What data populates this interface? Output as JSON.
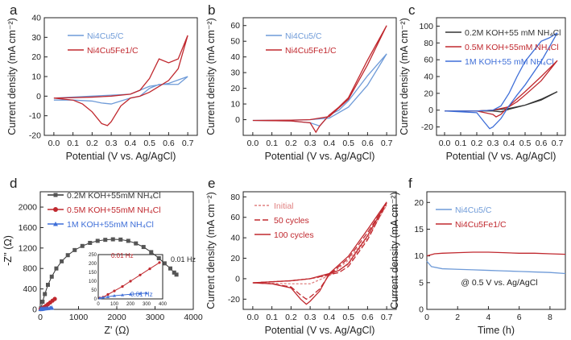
{
  "colors": {
    "blue": "#6f9bd8",
    "red": "#c0282e",
    "black": "#333333",
    "bright_blue": "#3f6fd8",
    "lightred": "#e08080"
  },
  "chart_data": [
    {
      "panel": "a",
      "type": "line",
      "xlabel": "Potential (V vs. Ag/AgCl)",
      "ylabel": "Current density (mA cm⁻²)",
      "xlim": [
        -0.05,
        0.75
      ],
      "ylim": [
        -20,
        40
      ],
      "xticks": [
        "0.0",
        "0.1",
        "0.2",
        "0.3",
        "0.4",
        "0.5",
        "0.6",
        "0.7"
      ],
      "yticks": [
        "-20",
        "-10",
        "0",
        "10",
        "20",
        "30",
        "40"
      ],
      "legend": [
        "Ni4Cu5/C",
        "Ni4Cu5Fe1/C"
      ],
      "series": [
        {
          "name": "Ni4Cu5/C",
          "color": "blue",
          "x": [
            0.0,
            0.1,
            0.2,
            0.3,
            0.4,
            0.5,
            0.6,
            0.7,
            0.65,
            0.6,
            0.55,
            0.5,
            0.45,
            0.4,
            0.35,
            0.3,
            0.25,
            0.2,
            0.1,
            0.0
          ],
          "y": [
            -1,
            -0.5,
            0,
            0.5,
            1,
            5,
            6.5,
            10,
            6,
            6,
            6,
            4,
            0,
            -1,
            -2.5,
            -4,
            -3.5,
            -2.5,
            -2,
            -2
          ]
        },
        {
          "name": "Ni4Cu5Fe1/C",
          "color": "red",
          "x": [
            0.0,
            0.1,
            0.2,
            0.3,
            0.4,
            0.45,
            0.5,
            0.55,
            0.6,
            0.65,
            0.7,
            0.65,
            0.6,
            0.55,
            0.5,
            0.45,
            0.4,
            0.35,
            0.3,
            0.28,
            0.25,
            0.2,
            0.15,
            0.1,
            0.0
          ],
          "y": [
            -1,
            -0.8,
            -0.5,
            0,
            1,
            3,
            9,
            19,
            17,
            19,
            31,
            14,
            8,
            5,
            2,
            0,
            -1,
            -5,
            -13,
            -15,
            -14,
            -8,
            -4,
            -2,
            -1
          ]
        }
      ]
    },
    {
      "panel": "b",
      "type": "line",
      "xlabel": "Potential (V vs. Ag/AgCl)",
      "ylabel": "Current density (mA cm⁻²)",
      "xlim": [
        -0.05,
        0.75
      ],
      "ylim": [
        -10,
        65
      ],
      "xticks": [
        "0.0",
        "0.1",
        "0.2",
        "0.3",
        "0.4",
        "0.5",
        "0.6",
        "0.7"
      ],
      "yticks": [
        "0",
        "10",
        "20",
        "30",
        "40",
        "50",
        "60"
      ],
      "legend": [
        "Ni4Cu5/C",
        "Ni4Cu5Fe1/C"
      ],
      "series": [
        {
          "name": "Ni4Cu5/C",
          "color": "blue",
          "x": [
            0.0,
            0.2,
            0.3,
            0.4,
            0.5,
            0.6,
            0.7,
            0.6,
            0.5,
            0.45,
            0.4,
            0.35,
            0.3,
            0.2,
            0.0
          ],
          "y": [
            -0.5,
            -0.3,
            0,
            1,
            8,
            22,
            42,
            28,
            12,
            6,
            3,
            -4,
            -2,
            -0.8,
            -0.5
          ]
        },
        {
          "name": "Ni4Cu5Fe1/C",
          "color": "red",
          "x": [
            0.0,
            0.2,
            0.3,
            0.4,
            0.5,
            0.6,
            0.7,
            0.6,
            0.5,
            0.45,
            0.4,
            0.35,
            0.33,
            0.3,
            0.2,
            0.0
          ],
          "y": [
            -0.5,
            -0.3,
            0,
            2,
            13,
            35,
            60,
            38,
            14,
            8,
            3,
            -4,
            -8,
            -2,
            -0.8,
            -0.5
          ]
        }
      ]
    },
    {
      "panel": "c",
      "type": "line",
      "xlabel": "Potential (V vs. Ag/AgCl)",
      "ylabel": "Current density (mA cm⁻²)",
      "xlim": [
        -0.05,
        0.75
      ],
      "ylim": [
        -30,
        110
      ],
      "xticks": [
        "0.0",
        "0.1",
        "0.2",
        "0.3",
        "0.4",
        "0.5",
        "0.6",
        "0.7"
      ],
      "yticks": [
        "-20",
        "0",
        "20",
        "40",
        "60",
        "80",
        "100"
      ],
      "legend": [
        "0.2M KOH+55 mM NH₄Cl",
        "0.5M KOH+55mM NH₄Cl",
        "1M KOH+55 mM NH₄Cl"
      ],
      "series": [
        {
          "name": "0.2M KOH+55 mM NH₄Cl",
          "color": "black",
          "x": [
            0.0,
            0.2,
            0.3,
            0.4,
            0.5,
            0.6,
            0.7,
            0.6,
            0.5,
            0.4,
            0.35,
            0.3,
            0.2,
            0.0
          ],
          "y": [
            -1,
            -1,
            0,
            2,
            6,
            12,
            22,
            13,
            6,
            1,
            -2,
            -1,
            -1,
            -1
          ]
        },
        {
          "name": "0.5M KOH+55mM NH₄Cl",
          "color": "red",
          "x": [
            0.0,
            0.2,
            0.3,
            0.4,
            0.45,
            0.5,
            0.6,
            0.7,
            0.6,
            0.5,
            0.4,
            0.35,
            0.32,
            0.3,
            0.2,
            0.0
          ],
          "y": [
            -1,
            -1,
            0,
            4,
            10,
            18,
            35,
            59,
            40,
            22,
            5,
            -5,
            -8,
            -5,
            -1,
            -1
          ]
        },
        {
          "name": "1M KOH+55 mM NH₄Cl",
          "color": "bright_blue",
          "x": [
            0.0,
            0.2,
            0.3,
            0.35,
            0.4,
            0.45,
            0.5,
            0.55,
            0.6,
            0.65,
            0.7,
            0.6,
            0.5,
            0.45,
            0.4,
            0.35,
            0.3,
            0.28,
            0.25,
            0.2,
            0.0
          ],
          "y": [
            -1,
            -1,
            0,
            5,
            20,
            40,
            58,
            70,
            82,
            86,
            92,
            58,
            30,
            18,
            5,
            -10,
            -20,
            -22,
            -15,
            -3,
            -1
          ]
        }
      ]
    },
    {
      "panel": "d",
      "type": "scatter",
      "xlabel": "Z' (Ω)",
      "ylabel": "-Z'' (Ω)",
      "xlim": [
        0,
        4000
      ],
      "ylim": [
        0,
        2300
      ],
      "xticks": [
        "0",
        "1000",
        "2000",
        "3000",
        "4000"
      ],
      "yticks": [
        "0",
        "400",
        "800",
        "1200",
        "1600",
        "2000"
      ],
      "legend": [
        "0.2M KOH+55mM NH₄Cl",
        "0.5M KOH+55mM NH₄Cl",
        "1M KOH+55mM NH₄Cl"
      ],
      "annotations": [
        "0.01 Hz",
        "0.01 Hz",
        "0.01 Hz"
      ],
      "inset": {
        "xlim": [
          0,
          400
        ],
        "ylim": [
          0,
          250
        ],
        "xticks": [
          "0",
          "100",
          "200",
          "300",
          "400"
        ],
        "yticks": [
          "0",
          "50",
          "100",
          "150",
          "200",
          "250"
        ]
      },
      "series": [
        {
          "name": "0.2M KOH+55mM NH₄Cl",
          "color": "black",
          "x": [
            20,
            60,
            120,
            200,
            300,
            420,
            560,
            720,
            900,
            1100,
            1300,
            1500,
            1700,
            1900,
            2100,
            2300,
            2500,
            2700,
            2900,
            3100,
            3250,
            3400,
            3500,
            3560
          ],
          "y": [
            20,
            150,
            300,
            480,
            640,
            800,
            940,
            1060,
            1160,
            1240,
            1300,
            1340,
            1360,
            1370,
            1365,
            1340,
            1290,
            1220,
            1120,
            1000,
            900,
            800,
            720,
            680
          ]
        },
        {
          "name": "0.5M KOH+55mM NH₄Cl",
          "color": "red",
          "x": [
            10,
            30,
            60,
            100,
            150,
            200,
            260,
            320,
            380
          ],
          "y": [
            5,
            10,
            25,
            45,
            70,
            100,
            135,
            170,
            205
          ]
        },
        {
          "name": "1M KOH+55mM NH₄Cl",
          "color": "bright_blue",
          "x": [
            10,
            30,
            60,
            100,
            150,
            200,
            260,
            300
          ],
          "y": [
            5,
            8,
            12,
            18,
            22,
            26,
            30,
            33
          ]
        }
      ]
    },
    {
      "panel": "e",
      "type": "line",
      "xlabel": "Potential (V vs. Ag/AgCl)",
      "ylabel": "Current density (mA cm⁻²)",
      "xlim": [
        -0.05,
        0.75
      ],
      "ylim": [
        -30,
        85
      ],
      "xticks": [
        "0.0",
        "0.1",
        "0.2",
        "0.3",
        "0.4",
        "0.5",
        "0.6",
        "0.7"
      ],
      "yticks": [
        "-20",
        "0",
        "20",
        "40",
        "60",
        "80"
      ],
      "legend": [
        "Initial",
        "50 cycles",
        "100 cycles"
      ],
      "series": [
        {
          "name": "Initial",
          "color": "lightred",
          "dash": "3,2",
          "x": [
            0.0,
            0.2,
            0.3,
            0.4,
            0.5,
            0.6,
            0.7,
            0.6,
            0.5,
            0.4,
            0.3,
            0.2,
            0.0
          ],
          "y": [
            -4,
            -2,
            0,
            3,
            14,
            40,
            72,
            42,
            18,
            3,
            -5,
            -5,
            -4
          ]
        },
        {
          "name": "50 cycles",
          "color": "red",
          "dash": "7,3",
          "x": [
            0.0,
            0.2,
            0.3,
            0.4,
            0.45,
            0.5,
            0.6,
            0.7,
            0.6,
            0.5,
            0.4,
            0.35,
            0.3,
            0.28,
            0.25,
            0.2,
            0.1,
            0.0
          ],
          "y": [
            -4,
            -2,
            0,
            4,
            6,
            12,
            38,
            74,
            45,
            20,
            4,
            -10,
            -18,
            -20,
            -16,
            -8,
            -5,
            -4
          ]
        },
        {
          "name": "100 cycles",
          "color": "red",
          "x": [
            0.0,
            0.2,
            0.3,
            0.4,
            0.45,
            0.5,
            0.6,
            0.7,
            0.6,
            0.5,
            0.4,
            0.35,
            0.3,
            0.28,
            0.25,
            0.2,
            0.1,
            0.0
          ],
          "y": [
            -4,
            -2,
            0,
            5,
            8,
            15,
            42,
            75,
            48,
            22,
            5,
            -12,
            -22,
            -25,
            -20,
            -9,
            -5,
            -4
          ]
        }
      ]
    },
    {
      "panel": "f",
      "type": "line",
      "xlabel": "Time (h)",
      "ylabel": "Current density (mA cm⁻²)",
      "xlim": [
        0,
        9
      ],
      "ylim": [
        0,
        22
      ],
      "xticks": [
        "0",
        "2",
        "4",
        "6",
        "8"
      ],
      "yticks": [
        "0",
        "5",
        "10",
        "15",
        "20"
      ],
      "legend": [
        "Ni4Cu5/C",
        "Ni4Cu5Fe1/C"
      ],
      "annotation": "@ 0.5 V vs. Ag/AgCl",
      "series": [
        {
          "name": "Ni4Cu5/C",
          "color": "blue",
          "x": [
            0,
            0.3,
            1,
            2,
            3,
            4,
            5,
            6,
            7,
            8,
            9
          ],
          "y": [
            9,
            8,
            7.6,
            7.5,
            7.4,
            7.3,
            7.2,
            7.1,
            7,
            6.9,
            6.7
          ]
        },
        {
          "name": "Ni4Cu5Fe1/C",
          "color": "red",
          "x": [
            0,
            0.5,
            1,
            2,
            3,
            4,
            5,
            6,
            7,
            8,
            9
          ],
          "y": [
            10,
            10.4,
            10.5,
            10.6,
            10.7,
            10.7,
            10.6,
            10.5,
            10.5,
            10.4,
            10.3
          ]
        }
      ]
    }
  ]
}
